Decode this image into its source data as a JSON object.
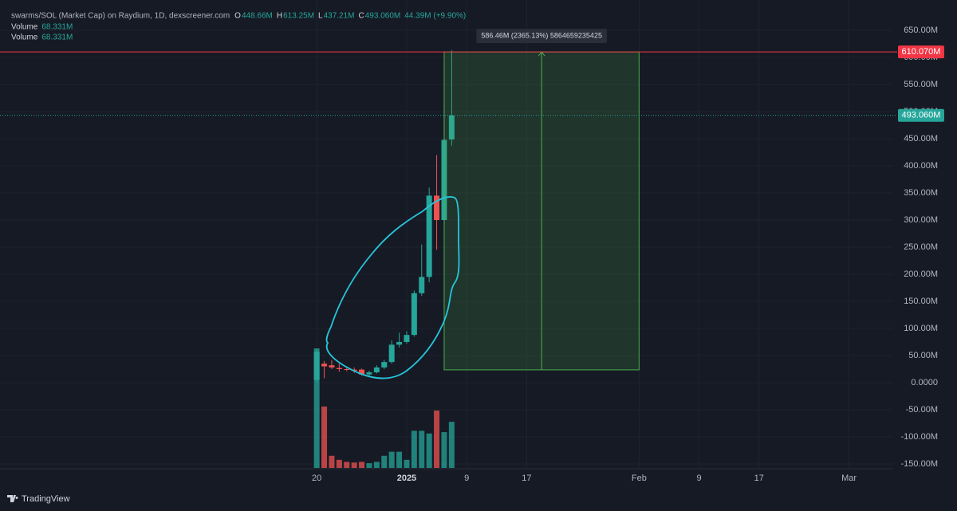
{
  "header": {
    "title": "swarms/SOL (Market Cap) on Raydium, 1D, dexscreener.com",
    "ohlc": [
      {
        "label": "O",
        "value": "448.66M"
      },
      {
        "label": "H",
        "value": "613.25M"
      },
      {
        "label": "L",
        "value": "437.21M"
      },
      {
        "label": "C",
        "value": "493.060M"
      }
    ],
    "change": "44.39M (+9.90%)",
    "volume": [
      {
        "label": "Volume",
        "value": "68.331M"
      },
      {
        "label": "Volume",
        "value": "68.331M"
      }
    ]
  },
  "chart_data": {
    "type": "candlestick",
    "x": [
      0,
      1,
      2,
      3,
      4,
      5,
      6,
      7,
      8,
      9,
      10,
      11,
      12,
      13,
      14,
      15,
      16,
      17,
      18
    ],
    "open": [
      5,
      35,
      32,
      27,
      25,
      24,
      24,
      15,
      19,
      28,
      38,
      70,
      75,
      88,
      165,
      195,
      345,
      300,
      448.66
    ],
    "high": [
      62,
      40,
      42,
      35,
      30,
      28,
      26,
      22,
      32,
      42,
      78,
      92,
      95,
      170,
      255,
      360,
      420,
      510,
      613.25
    ],
    "low": [
      0,
      8,
      25,
      20,
      21,
      18,
      13,
      12,
      17,
      25,
      35,
      65,
      72,
      85,
      160,
      185,
      245,
      290,
      437.21
    ],
    "close": [
      57,
      30,
      28,
      25,
      24,
      22,
      15,
      19,
      28,
      38,
      70,
      75,
      88,
      165,
      195,
      345,
      300,
      448,
      493.06
    ],
    "volume": [
      177,
      91,
      18,
      12,
      9,
      8,
      9,
      7,
      9,
      18,
      24,
      24,
      12,
      55,
      55,
      51,
      85,
      53,
      68.331
    ],
    "up_color": "#26a69a",
    "down_color": "#ef5350",
    "xlim": [
      -41.4,
      76.9
    ],
    "xticks": [
      {
        "value": 0,
        "label": "20"
      },
      {
        "value": 12,
        "label": "2025"
      },
      {
        "value": 20,
        "label": "9"
      },
      {
        "value": 28,
        "label": "17"
      },
      {
        "value": 43,
        "label": "Feb"
      },
      {
        "value": 51,
        "label": "9"
      },
      {
        "value": 59,
        "label": "17"
      },
      {
        "value": 71,
        "label": "Mar"
      }
    ],
    "ylim": [
      -157.4,
      705.9
    ],
    "yticks": [
      {
        "value": 650,
        "label": "650.00M"
      },
      {
        "value": 600,
        "label": "600.00M"
      },
      {
        "value": 550,
        "label": "550.00M"
      },
      {
        "value": 500,
        "label": "500.00M"
      },
      {
        "value": 450,
        "label": "450.00M"
      },
      {
        "value": 400,
        "label": "400.00M"
      },
      {
        "value": 350,
        "label": "350.00M"
      },
      {
        "value": 300,
        "label": "300.00M"
      },
      {
        "value": 250,
        "label": "250.00M"
      },
      {
        "value": 200,
        "label": "200.00M"
      },
      {
        "value": 150,
        "label": "150.00M"
      },
      {
        "value": 100,
        "label": "100.00M"
      },
      {
        "value": 50,
        "label": "50.00M"
      },
      {
        "value": 0,
        "label": "0.0000"
      },
      {
        "value": -50,
        "label": "-50.00M"
      },
      {
        "value": -100,
        "label": "-100.00M"
      },
      {
        "value": -150,
        "label": "-150.00M"
      }
    ],
    "volume_lim": [
      0,
      236
    ],
    "grid": true,
    "price_lines": [
      {
        "value": 610.07,
        "label": "610.070M",
        "color": "#f23645"
      },
      {
        "value": 493.06,
        "label": "493.060M",
        "color": "#26a69a"
      }
    ],
    "measure": {
      "x_range": [
        17,
        43
      ],
      "from": 23.61,
      "to": 610.07,
      "label": "586.46M (2365.13%) 5864659235425",
      "color": "#4caf50"
    }
  },
  "footer": {
    "brand": "TradingView"
  }
}
